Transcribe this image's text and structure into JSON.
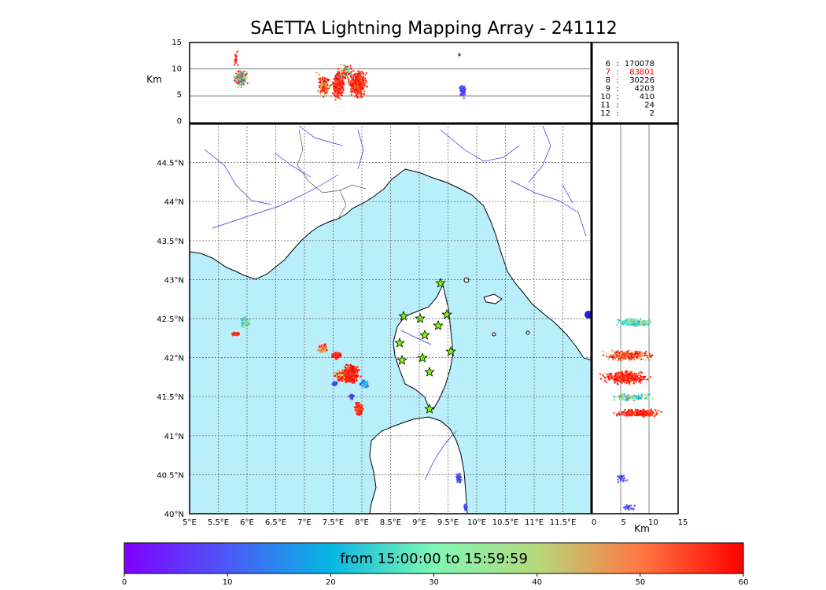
{
  "title": "SAETTA Lightning Mapping Array - 241112",
  "top_panel": {
    "ylabel": "Km",
    "yticks": [
      "0",
      "5",
      "10",
      "15"
    ]
  },
  "side_panel": {
    "xlabel": "Km",
    "xticks": [
      "0",
      "5",
      "10",
      "15"
    ]
  },
  "map": {
    "lon_labels": [
      "5°E",
      "5.5°E",
      "6°E",
      "6.5°E",
      "7°E",
      "7.5°E",
      "8°E",
      "8.5°E",
      "9°E",
      "9.5°E",
      "10°E",
      "10.5°E",
      "11°E",
      "11.5°E"
    ],
    "lat_labels": [
      "40°N",
      "40.5°N",
      "41°N",
      "41.5°N",
      "42°N",
      "42.5°N",
      "43°N",
      "43.5°N",
      "44°N",
      "44.5°N"
    ],
    "lon_range": [
      5,
      12
    ],
    "lat_range": [
      40,
      45
    ],
    "sea_color": "#b9eefb",
    "land_color": "#ffffff",
    "river_color": "#3030e0",
    "star_color": "#7cfc00"
  },
  "station_counts": [
    {
      "stations": "6",
      "sep": ":",
      "count": "170078",
      "highlight": false
    },
    {
      "stations": "7",
      "sep": ":",
      "count": "83801",
      "highlight": true
    },
    {
      "stations": "8",
      "sep": ":",
      "count": "30226",
      "highlight": false
    },
    {
      "stations": "9",
      "sep": ":",
      "count": "4203",
      "highlight": false
    },
    {
      "stations": "10",
      "sep": ":",
      "count": "410",
      "highlight": false
    },
    {
      "stations": "11",
      "sep": ":",
      "count": "24",
      "highlight": false
    },
    {
      "stations": "12",
      "sep": ":",
      "count": "2",
      "highlight": false
    }
  ],
  "colorbar": {
    "label": "from 15:00:00 to 15:59:59",
    "ticks": [
      "0",
      "10",
      "20",
      "30",
      "40",
      "50",
      "60"
    ],
    "range": [
      0,
      60
    ]
  }
}
